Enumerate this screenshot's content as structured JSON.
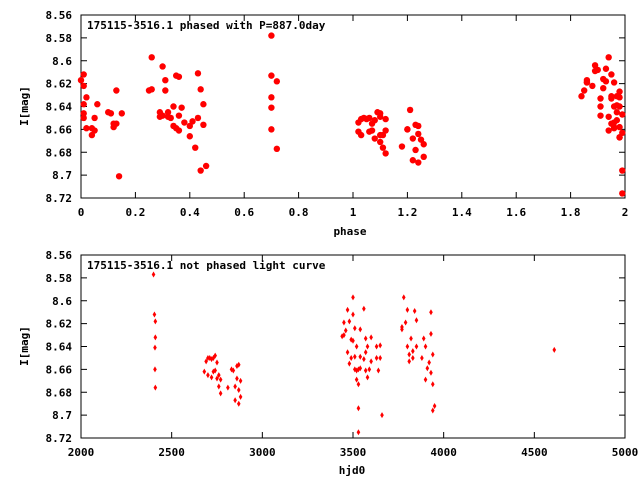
{
  "chart_data": [
    {
      "type": "scatter",
      "title": "175115-3516.1 phased with P=887.0day",
      "xlabel": "phase",
      "ylabel": "I[mag]",
      "xlim": [
        0,
        2
      ],
      "ylim": [
        8.56,
        8.72
      ],
      "y_inverted": true,
      "marker": "filled circle",
      "x_ticks": [
        0,
        0.2,
        0.4,
        0.6,
        0.8,
        1,
        1.2,
        1.4,
        1.6,
        1.8,
        2
      ],
      "x_tick_labels": [
        "0",
        "0.2",
        "0.4",
        "0.6",
        "0.8",
        "1",
        "1.2",
        "1.4",
        "1.6",
        "1.8",
        "2"
      ],
      "y_ticks": [
        8.56,
        8.58,
        8.6,
        8.62,
        8.64,
        8.66,
        8.68,
        8.7,
        8.72
      ],
      "y_tick_labels": [
        "8.56",
        "8.58",
        "8.6",
        "8.62",
        "8.64",
        "8.66",
        "8.68",
        "8.7",
        "8.72"
      ],
      "color": "#ff0000",
      "points": [
        [
          0.0,
          8.617
        ],
        [
          0.01,
          8.638
        ],
        [
          0.01,
          8.646
        ],
        [
          0.01,
          8.65
        ],
        [
          0.01,
          8.622
        ],
        [
          0.01,
          8.612
        ],
        [
          0.02,
          8.632
        ],
        [
          0.02,
          8.659
        ],
        [
          0.04,
          8.665
        ],
        [
          0.04,
          8.659
        ],
        [
          0.05,
          8.661
        ],
        [
          0.05,
          8.65
        ],
        [
          0.06,
          8.638
        ],
        [
          0.1,
          8.645
        ],
        [
          0.11,
          8.646
        ],
        [
          0.12,
          8.655
        ],
        [
          0.12,
          8.658
        ],
        [
          0.13,
          8.626
        ],
        [
          0.13,
          8.655
        ],
        [
          0.14,
          8.701
        ],
        [
          0.15,
          8.646
        ],
        [
          0.25,
          8.626
        ],
        [
          0.26,
          8.597
        ],
        [
          0.26,
          8.625
        ],
        [
          0.29,
          8.649
        ],
        [
          0.29,
          8.645
        ],
        [
          0.3,
          8.648
        ],
        [
          0.3,
          8.605
        ],
        [
          0.31,
          8.617
        ],
        [
          0.31,
          8.626
        ],
        [
          0.32,
          8.645
        ],
        [
          0.32,
          8.649
        ],
        [
          0.33,
          8.65
        ],
        [
          0.34,
          8.657
        ],
        [
          0.34,
          8.64
        ],
        [
          0.35,
          8.613
        ],
        [
          0.35,
          8.659
        ],
        [
          0.36,
          8.648
        ],
        [
          0.36,
          8.614
        ],
        [
          0.36,
          8.661
        ],
        [
          0.37,
          8.641
        ],
        [
          0.38,
          8.654
        ],
        [
          0.4,
          8.657
        ],
        [
          0.4,
          8.666
        ],
        [
          0.41,
          8.653
        ],
        [
          0.42,
          8.676
        ],
        [
          0.43,
          8.611
        ],
        [
          0.43,
          8.65
        ],
        [
          0.44,
          8.625
        ],
        [
          0.44,
          8.696
        ],
        [
          0.45,
          8.656
        ],
        [
          0.45,
          8.638
        ],
        [
          0.46,
          8.692
        ],
        [
          0.7,
          8.578
        ],
        [
          0.7,
          8.613
        ],
        [
          0.7,
          8.632
        ],
        [
          0.7,
          8.641
        ],
        [
          0.7,
          8.66
        ],
        [
          0.72,
          8.618
        ],
        [
          0.72,
          8.677
        ],
        [
          1.02,
          8.662
        ],
        [
          1.02,
          8.654
        ],
        [
          1.03,
          8.651
        ],
        [
          1.03,
          8.665
        ],
        [
          1.04,
          8.65
        ],
        [
          1.05,
          8.651
        ],
        [
          1.06,
          8.662
        ],
        [
          1.06,
          8.65
        ],
        [
          1.07,
          8.661
        ],
        [
          1.07,
          8.655
        ],
        [
          1.08,
          8.668
        ],
        [
          1.08,
          8.652
        ],
        [
          1.09,
          8.645
        ],
        [
          1.1,
          8.665
        ],
        [
          1.1,
          8.671
        ],
        [
          1.1,
          8.649
        ],
        [
          1.1,
          8.646
        ],
        [
          1.11,
          8.676
        ],
        [
          1.11,
          8.665
        ],
        [
          1.12,
          8.651
        ],
        [
          1.12,
          8.661
        ],
        [
          1.12,
          8.681
        ],
        [
          1.18,
          8.675
        ],
        [
          1.2,
          8.66
        ],
        [
          1.2,
          8.66
        ],
        [
          1.21,
          8.643
        ],
        [
          1.22,
          8.687
        ],
        [
          1.22,
          8.668
        ],
        [
          1.23,
          8.678
        ],
        [
          1.23,
          8.656
        ],
        [
          1.24,
          8.657
        ],
        [
          1.24,
          8.689
        ],
        [
          1.24,
          8.664
        ],
        [
          1.25,
          8.669
        ],
        [
          1.26,
          8.684
        ],
        [
          1.26,
          8.673
        ],
        [
          1.84,
          8.631
        ],
        [
          1.85,
          8.626
        ],
        [
          1.86,
          8.619
        ],
        [
          1.86,
          8.619
        ],
        [
          1.86,
          8.617
        ],
        [
          1.88,
          8.622
        ],
        [
          1.89,
          8.609
        ],
        [
          1.89,
          8.604
        ],
        [
          1.9,
          8.608
        ],
        [
          1.91,
          8.633
        ],
        [
          1.91,
          8.64
        ],
        [
          1.91,
          8.648
        ],
        [
          1.92,
          8.624
        ],
        [
          1.92,
          8.616
        ],
        [
          1.93,
          8.607
        ],
        [
          1.93,
          8.618
        ],
        [
          1.94,
          8.649
        ],
        [
          1.94,
          8.661
        ],
        [
          1.94,
          8.597
        ],
        [
          1.95,
          8.612
        ],
        [
          1.95,
          8.631
        ],
        [
          1.95,
          8.633
        ],
        [
          1.95,
          8.655
        ],
        [
          1.96,
          8.658
        ],
        [
          1.96,
          8.64
        ],
        [
          1.96,
          8.619
        ],
        [
          1.96,
          8.654
        ],
        [
          1.96,
          8.659
        ],
        [
          1.97,
          8.645
        ],
        [
          1.97,
          8.631
        ],
        [
          1.97,
          8.639
        ],
        [
          1.97,
          8.652
        ],
        [
          1.98,
          8.627
        ],
        [
          1.98,
          8.632
        ],
        [
          1.98,
          8.667
        ],
        [
          1.98,
          8.64
        ],
        [
          1.98,
          8.658
        ],
        [
          1.99,
          8.647
        ],
        [
          1.99,
          8.663
        ],
        [
          1.99,
          8.696
        ],
        [
          1.99,
          8.716
        ],
        [
          1.98,
          8.667
        ]
      ]
    },
    {
      "type": "scatter",
      "title": "175115-3516.1 not phased light curve",
      "xlabel": "hjd0",
      "ylabel": "I[mag]",
      "xlim": [
        2000,
        5000
      ],
      "ylim": [
        8.56,
        8.72
      ],
      "y_inverted": true,
      "marker": "small filled diamond",
      "x_ticks": [
        2000,
        2500,
        3000,
        3500,
        4000,
        4500,
        5000
      ],
      "x_tick_labels": [
        "2000",
        "2500",
        "3000",
        "3500",
        "4000",
        "4500",
        "5000"
      ],
      "y_ticks": [
        8.56,
        8.58,
        8.6,
        8.62,
        8.64,
        8.66,
        8.68,
        8.7,
        8.72
      ],
      "y_tick_labels": [
        "8.56",
        "8.58",
        "8.6",
        "8.62",
        "8.64",
        "8.66",
        "8.68",
        "8.7",
        "8.72"
      ],
      "color": "#ff0000",
      "points": [
        [
          2400,
          8.577
        ],
        [
          2405,
          8.612
        ],
        [
          2410,
          8.618
        ],
        [
          2410,
          8.632
        ],
        [
          2408,
          8.641
        ],
        [
          2408,
          8.66
        ],
        [
          2410,
          8.676
        ],
        [
          2680,
          8.662
        ],
        [
          2690,
          8.653
        ],
        [
          2700,
          8.65
        ],
        [
          2700,
          8.665
        ],
        [
          2710,
          8.65
        ],
        [
          2720,
          8.651
        ],
        [
          2720,
          8.667
        ],
        [
          2730,
          8.662
        ],
        [
          2730,
          8.65
        ],
        [
          2740,
          8.661
        ],
        [
          2740,
          8.648
        ],
        [
          2750,
          8.654
        ],
        [
          2750,
          8.668
        ],
        [
          2760,
          8.675
        ],
        [
          2760,
          8.665
        ],
        [
          2770,
          8.681
        ],
        [
          2770,
          8.669
        ],
        [
          2810,
          8.676
        ],
        [
          2830,
          8.66
        ],
        [
          2840,
          8.661
        ],
        [
          2850,
          8.675
        ],
        [
          2850,
          8.687
        ],
        [
          2860,
          8.657
        ],
        [
          2860,
          8.668
        ],
        [
          2870,
          8.69
        ],
        [
          2870,
          8.678
        ],
        [
          2870,
          8.656
        ],
        [
          2880,
          8.684
        ],
        [
          2880,
          8.67
        ],
        [
          3440,
          8.631
        ],
        [
          3450,
          8.63
        ],
        [
          3450,
          8.619
        ],
        [
          3460,
          8.626
        ],
        [
          3470,
          8.608
        ],
        [
          3470,
          8.645
        ],
        [
          3480,
          8.618
        ],
        [
          3480,
          8.655
        ],
        [
          3490,
          8.634
        ],
        [
          3490,
          8.65
        ],
        [
          3500,
          8.597
        ],
        [
          3500,
          8.612
        ],
        [
          3500,
          8.635
        ],
        [
          3510,
          8.624
        ],
        [
          3510,
          8.649
        ],
        [
          3510,
          8.66
        ],
        [
          3520,
          8.64
        ],
        [
          3520,
          8.661
        ],
        [
          3520,
          8.669
        ],
        [
          3530,
          8.66
        ],
        [
          3530,
          8.673
        ],
        [
          3530,
          8.694
        ],
        [
          3540,
          8.625
        ],
        [
          3540,
          8.649
        ],
        [
          3540,
          8.659
        ],
        [
          3530,
          8.715
        ],
        [
          3560,
          8.651
        ],
        [
          3560,
          8.607
        ],
        [
          3570,
          8.633
        ],
        [
          3570,
          8.645
        ],
        [
          3570,
          8.661
        ],
        [
          3580,
          8.64
        ],
        [
          3580,
          8.667
        ],
        [
          3590,
          8.66
        ],
        [
          3600,
          8.632
        ],
        [
          3600,
          8.653
        ],
        [
          3630,
          8.64
        ],
        [
          3630,
          8.65
        ],
        [
          3640,
          8.661
        ],
        [
          3650,
          8.639
        ],
        [
          3650,
          8.65
        ],
        [
          3660,
          8.7
        ],
        [
          3770,
          8.623
        ],
        [
          3770,
          8.625
        ],
        [
          3780,
          8.597
        ],
        [
          3790,
          8.619
        ],
        [
          3800,
          8.608
        ],
        [
          3800,
          8.64
        ],
        [
          3810,
          8.647
        ],
        [
          3810,
          8.653
        ],
        [
          3820,
          8.633
        ],
        [
          3830,
          8.644
        ],
        [
          3830,
          8.65
        ],
        [
          3840,
          8.609
        ],
        [
          3850,
          8.617
        ],
        [
          3850,
          8.64
        ],
        [
          3880,
          8.65
        ],
        [
          3890,
          8.633
        ],
        [
          3900,
          8.64
        ],
        [
          3900,
          8.669
        ],
        [
          3910,
          8.659
        ],
        [
          3920,
          8.654
        ],
        [
          3930,
          8.61
        ],
        [
          3930,
          8.629
        ],
        [
          3930,
          8.663
        ],
        [
          3940,
          8.647
        ],
        [
          3940,
          8.673
        ],
        [
          3940,
          8.696
        ],
        [
          3950,
          8.692
        ],
        [
          4610,
          8.643
        ]
      ]
    }
  ]
}
